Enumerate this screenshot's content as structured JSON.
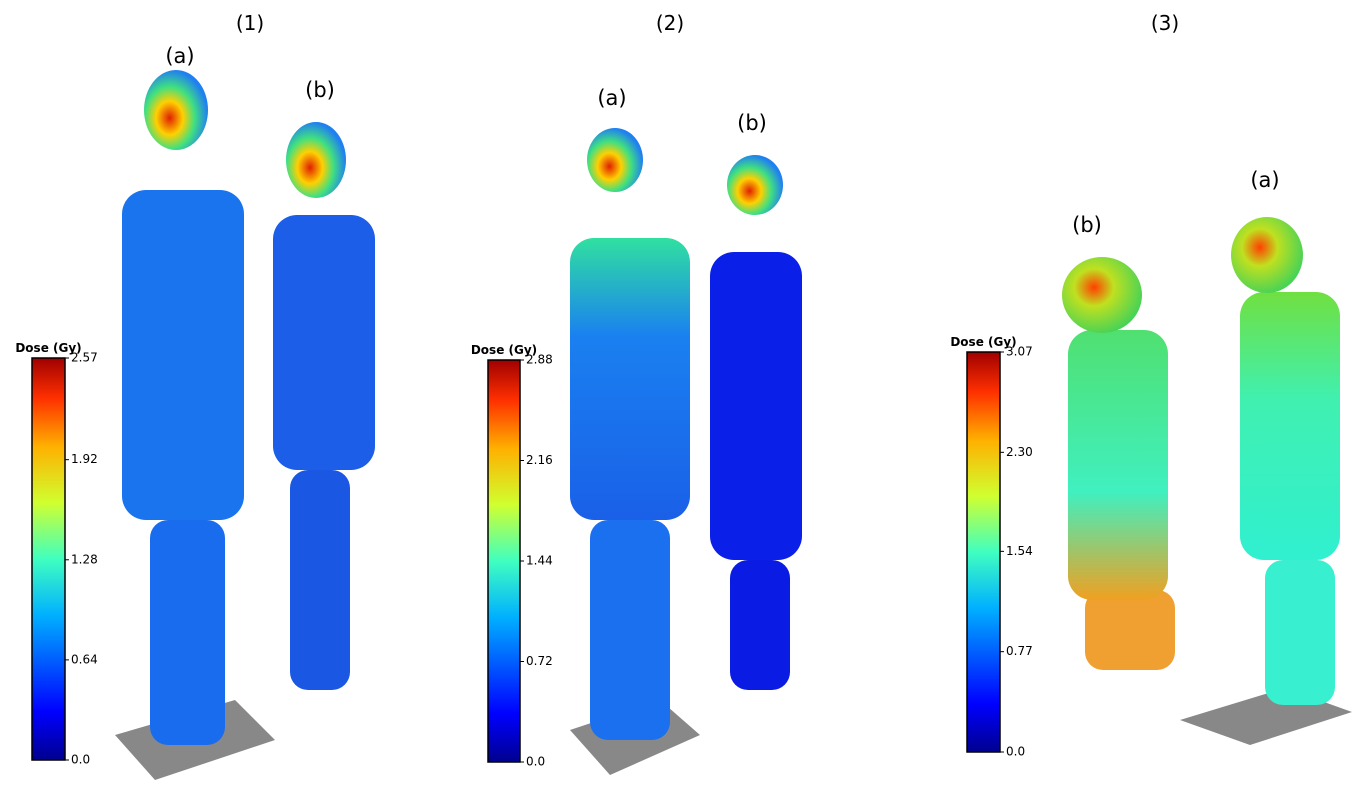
{
  "panels": [
    {
      "label": "(1)",
      "figures": [
        "(a)",
        "(b)"
      ],
      "colorbar": {
        "title": "Dose (Gy)",
        "range": [
          0,
          2.57
        ],
        "ticks": [
          {
            "value": 0,
            "label": "0.0"
          },
          0.64,
          1.28,
          1.92,
          2.57
        ]
      }
    },
    {
      "label": "(2)",
      "figures": [
        "(a)",
        "(b)"
      ],
      "colorbar": {
        "title": "Dose (Gy)",
        "range": [
          0,
          2.88
        ],
        "ticks": [
          {
            "value": 0,
            "label": "0.0"
          },
          0.72,
          1.44,
          2.16,
          2.88
        ]
      }
    },
    {
      "label": "(3)",
      "figures": [
        "(a)",
        "(b)"
      ],
      "colorbar": {
        "title": "Dose (Gy)",
        "range": [
          0,
          3.07
        ],
        "ticks": [
          {
            "value": 0,
            "label": "0.0"
          },
          0.77,
          1.54,
          {
            "value": 2.3,
            "label": "2.30"
          },
          3.07
        ]
      }
    }
  ]
}
